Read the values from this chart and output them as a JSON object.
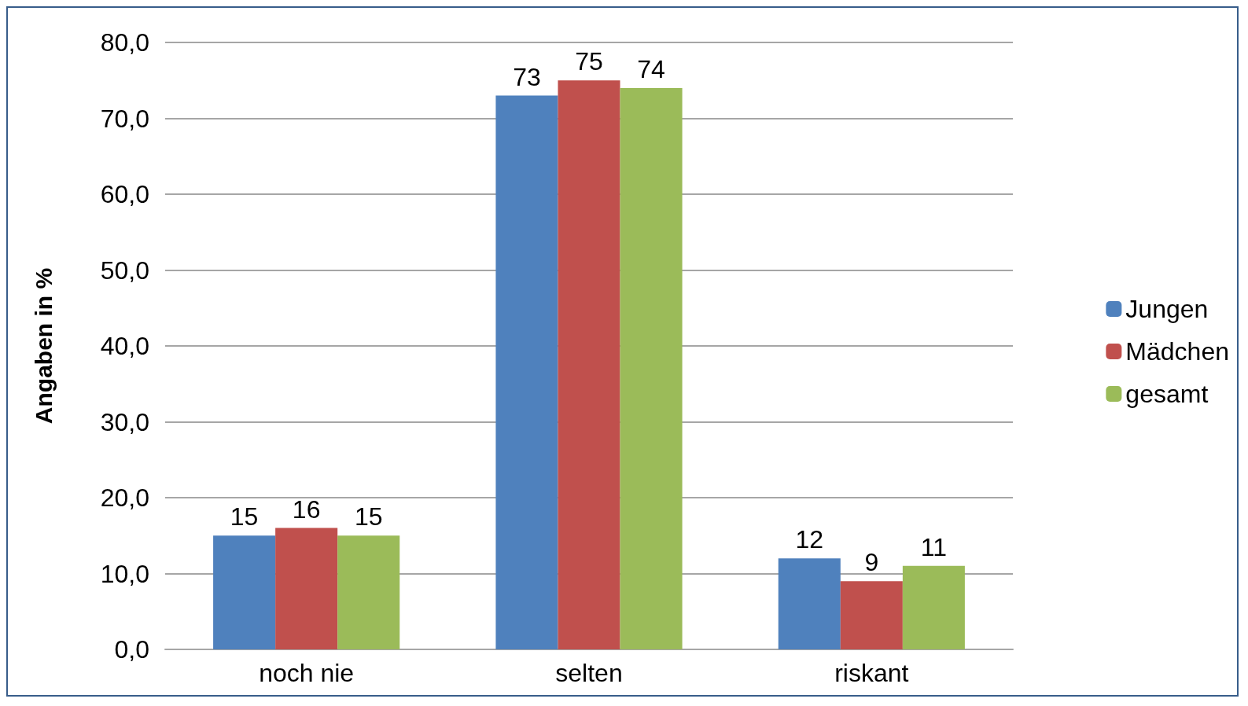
{
  "chart_data": {
    "type": "bar",
    "ylabel": "Angaben in %",
    "categories": [
      "noch nie",
      "selten",
      "riskant"
    ],
    "series": [
      {
        "name": "Jungen",
        "color": "#4f81bd",
        "values": [
          15,
          73,
          12
        ]
      },
      {
        "name": "Mädchen",
        "color": "#c0504d",
        "values": [
          16,
          75,
          9
        ]
      },
      {
        "name": "gesamt",
        "color": "#9bbb59",
        "values": [
          15,
          74,
          11
        ]
      }
    ],
    "ylim": [
      0,
      80
    ],
    "yticks": [
      {
        "value": 0,
        "label": "0,0"
      },
      {
        "value": 10,
        "label": "10,0"
      },
      {
        "value": 20,
        "label": "20,0"
      },
      {
        "value": 30,
        "label": "30,0"
      },
      {
        "value": 40,
        "label": "40,0"
      },
      {
        "value": 50,
        "label": "50,0"
      },
      {
        "value": 60,
        "label": "60,0"
      },
      {
        "value": 70,
        "label": "70,0"
      },
      {
        "value": 80,
        "label": "80,0"
      }
    ],
    "grid": true,
    "legend": "right",
    "data_labels": true
  }
}
